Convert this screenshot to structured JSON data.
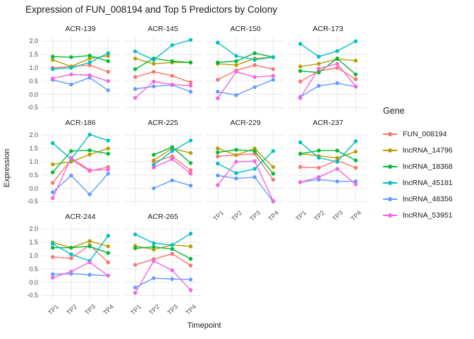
{
  "chart_data": {
    "type": "line",
    "title": "Expression of FUN_008194 and Top 5 Predictors by Colony",
    "xlabel": "Timepoint",
    "ylabel": "Expression",
    "legend_title": "Gene",
    "legend_position": "right",
    "grid": true,
    "categories": [
      "TP1",
      "TP2",
      "TP3",
      "TP4"
    ],
    "y_ticks": [
      "2.0",
      "1.5",
      "1.0",
      "0.5",
      "0.0",
      "-0.5"
    ],
    "ylim": [
      -0.65,
      2.17
    ],
    "series_meta": [
      {
        "name": "FUN_008194",
        "color": "#F8766D"
      },
      {
        "name": "lncRNA_14796",
        "color": "#B79F00"
      },
      {
        "name": "lncRNA_18368",
        "color": "#00BA38"
      },
      {
        "name": "lncRNA_45181",
        "color": "#00BFC4"
      },
      {
        "name": "lncRNA_48356",
        "color": "#619CFF"
      },
      {
        "name": "lncRNA_53951",
        "color": "#F564E2"
      }
    ],
    "facets": [
      {
        "colony": "ACR-139",
        "values": [
          [
            1.0,
            1.05,
            1.1,
            0.85
          ],
          [
            1.3,
            1.05,
            1.35,
            1.45
          ],
          [
            1.42,
            1.4,
            1.46,
            1.25
          ],
          [
            0.95,
            1.0,
            1.2,
            1.55
          ],
          [
            0.55,
            0.37,
            0.63,
            0.15
          ],
          [
            0.6,
            0.75,
            0.72,
            0.5
          ]
        ]
      },
      {
        "colony": "ACR-145",
        "values": [
          [
            0.65,
            0.85,
            0.7,
            0.45
          ],
          [
            1.35,
            1.15,
            1.2,
            1.2
          ],
          [
            0.95,
            1.35,
            1.25,
            1.2
          ],
          [
            1.62,
            1.3,
            1.85,
            2.05
          ],
          [
            0.2,
            0.3,
            0.35,
            0.1
          ],
          [
            -0.13,
            0.48,
            0.37,
            0.33
          ]
        ]
      },
      {
        "colony": "ACR-150",
        "values": [
          [
            0.55,
            0.9,
            1.1,
            0.95
          ],
          [
            1.15,
            1.1,
            1.35,
            1.4
          ],
          [
            1.2,
            1.25,
            1.55,
            1.4
          ],
          [
            1.95,
            1.45,
            1.3,
            1.4
          ],
          [
            0.1,
            -0.03,
            0.27,
            0.55
          ],
          [
            -0.15,
            0.85,
            0.65,
            0.7
          ]
        ]
      },
      {
        "colony": "ACR-173",
        "values": [
          [
            0.48,
            0.88,
            1.0,
            0.57
          ],
          [
            1.05,
            1.15,
            1.33,
            1.27
          ],
          [
            0.88,
            0.82,
            1.35,
            0.75
          ],
          [
            1.9,
            1.42,
            1.63,
            2.0
          ],
          [
            -0.1,
            0.32,
            0.42,
            0.29
          ],
          [
            -0.14,
            0.97,
            1.15,
            0.3
          ]
        ]
      },
      {
        "colony": "ACR-186",
        "values": [
          [
            0.2,
            1.08,
            0.65,
            0.8
          ],
          [
            0.9,
            1.0,
            1.27,
            1.5
          ],
          [
            0.6,
            1.4,
            1.43,
            1.3
          ],
          [
            1.7,
            1.1,
            2.02,
            1.8
          ],
          [
            -0.15,
            0.48,
            -0.23,
            0.55
          ],
          [
            -0.37,
            1.15,
            0.68,
            0.7
          ]
        ]
      },
      {
        "colony": "ACR-225",
        "values": [
          [
            null,
            1.0,
            1.2,
            0.68
          ],
          [
            null,
            1.05,
            1.5,
            1.33
          ],
          [
            null,
            1.26,
            1.55,
            0.95
          ],
          [
            null,
            0.87,
            1.4,
            1.8
          ],
          [
            null,
            0.0,
            0.3,
            0.1
          ],
          [
            null,
            0.78,
            1.1,
            0.55
          ]
        ]
      },
      {
        "colony": "ACR-229",
        "values": [
          [
            1.2,
            1.25,
            1.3,
            0.32
          ],
          [
            1.5,
            1.25,
            1.5,
            0.8
          ],
          [
            1.35,
            1.45,
            1.4,
            0.55
          ],
          [
            0.93,
            0.57,
            0.73,
            1.4
          ],
          [
            0.48,
            0.37,
            0.42,
            -0.5
          ],
          [
            0.12,
            1.0,
            1.02,
            -0.48
          ]
        ]
      },
      {
        "colony": "ACR-237",
        "values": [
          [
            0.8,
            0.77,
            1.05,
            0.77
          ],
          [
            1.3,
            1.22,
            1.14,
            1.38
          ],
          [
            1.3,
            1.42,
            1.42,
            1.05
          ],
          [
            1.73,
            1.15,
            1.0,
            1.77
          ],
          [
            0.23,
            0.33,
            0.26,
            0.26
          ],
          [
            0.23,
            0.42,
            0.73,
            0.15
          ]
        ]
      },
      {
        "colony": "ACR-244",
        "values": [
          [
            0.95,
            0.9,
            1.4,
            0.75
          ],
          [
            1.5,
            1.3,
            1.55,
            1.35
          ],
          [
            1.3,
            1.3,
            1.35,
            1.1
          ],
          [
            1.45,
            1.05,
            0.8,
            1.75
          ],
          [
            0.3,
            0.32,
            0.28,
            0.25
          ],
          [
            0.17,
            0.4,
            0.75,
            0.25
          ]
        ]
      },
      {
        "colony": "ACR-265",
        "values": [
          [
            0.65,
            0.87,
            1.07,
            0.63
          ],
          [
            1.37,
            1.23,
            1.4,
            1.35
          ],
          [
            1.28,
            1.33,
            1.25,
            0.88
          ],
          [
            1.8,
            1.47,
            1.4,
            1.83
          ],
          [
            -0.2,
            0.15,
            0.12,
            0.1
          ],
          [
            -0.4,
            0.8,
            0.45,
            -0.3
          ]
        ]
      }
    ]
  }
}
